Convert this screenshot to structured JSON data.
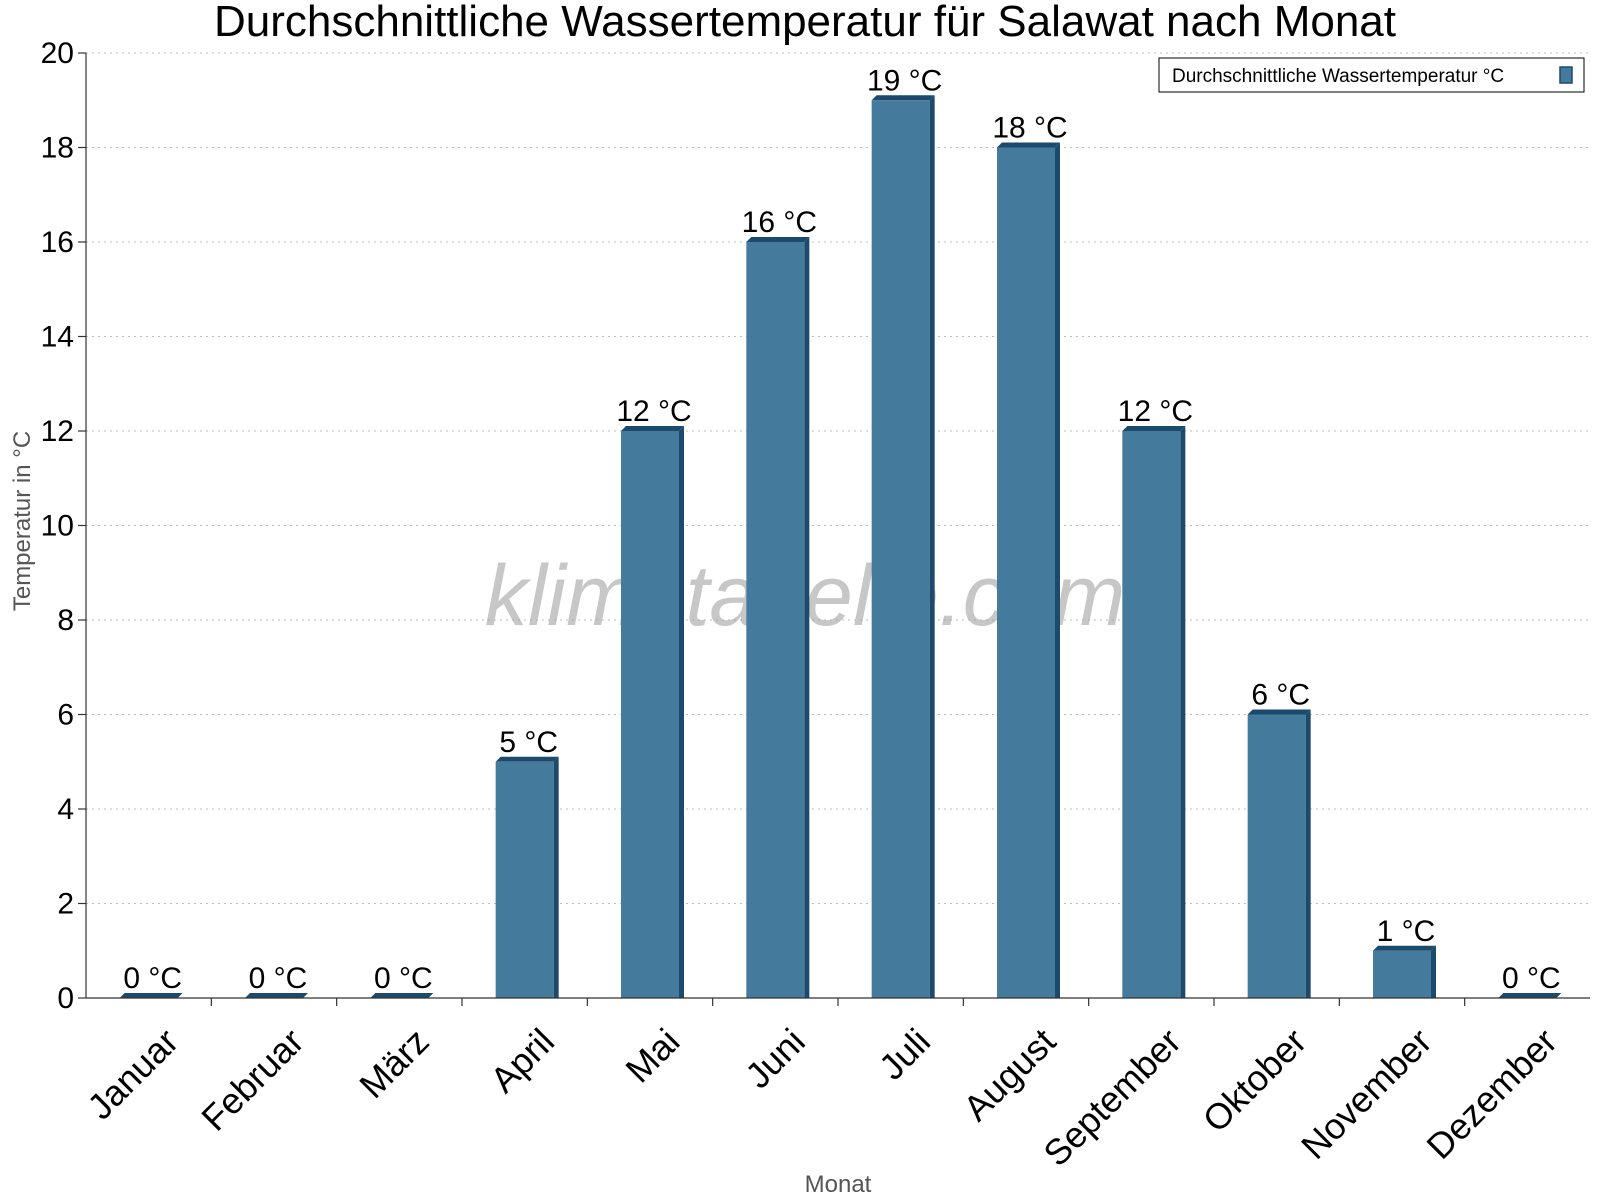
{
  "chart_data": {
    "type": "bar",
    "title": "Durchschnittliche Wassertemperatur für Salawat nach Monat",
    "xlabel": "Monat",
    "ylabel": "Temperatur in °C",
    "categories": [
      "Januar",
      "Februar",
      "März",
      "April",
      "Mai",
      "Juni",
      "Juli",
      "August",
      "September",
      "Oktober",
      "November",
      "Dezember"
    ],
    "series": [
      {
        "name": "Durchschnittliche Wassertemperatur °C",
        "values": [
          0,
          0,
          0,
          5,
          12,
          16,
          19,
          18,
          12,
          6,
          1,
          0
        ],
        "labels": [
          "0 °C",
          "0 °C",
          "0 °C",
          "5 °C",
          "12 °C",
          "16 °C",
          "19 °C",
          "18 °C",
          "12 °C",
          "6 °C",
          "1 °C",
          "0 °C"
        ],
        "color": "#447a9c",
        "edge_color": "#1c4a6c"
      }
    ],
    "ylim": [
      0,
      20
    ],
    "yticks": [
      0,
      2,
      4,
      6,
      8,
      10,
      12,
      14,
      16,
      18,
      20
    ],
    "grid": true,
    "legend_position": "top-right",
    "watermark": "klimatabelle.com"
  }
}
